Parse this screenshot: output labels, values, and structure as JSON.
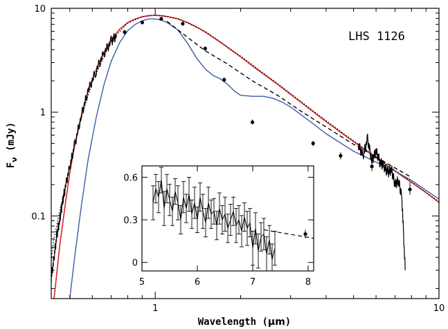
{
  "chart_data": [
    {
      "type": "line",
      "panel": "main",
      "xlabel_main": "Wavelength (",
      "xlabel_unit": "μm",
      "xlabel_close": ")",
      "ylabel_main": "F",
      "ylabel_sub": "ν",
      "ylabel_unit": " (mJy)",
      "annotation": "LHS 1126",
      "xscale": "log",
      "yscale": "log",
      "xlim": [
        0.43,
        10
      ],
      "ylim": [
        0.016,
        10
      ],
      "xticks": [
        {
          "v": 1,
          "label": "1"
        },
        {
          "v": 10,
          "label": "10"
        }
      ],
      "yticks": [
        {
          "v": 0.1,
          "label": "0.1"
        },
        {
          "v": 1,
          "label": "1"
        },
        {
          "v": 10,
          "label": "10"
        }
      ],
      "colors": {
        "red": "#dd2222",
        "blue": "#3e5aa8",
        "black": "#000000"
      },
      "series": [
        {
          "key": "red_model",
          "color": "#dd2222",
          "style": "solid",
          "x": [
            0.44,
            0.46,
            0.48,
            0.5,
            0.52,
            0.55,
            0.58,
            0.62,
            0.66,
            0.7,
            0.75,
            0.8,
            0.85,
            0.9,
            0.95,
            1.0,
            1.05,
            1.1,
            1.2,
            1.3,
            1.4,
            1.5,
            1.7,
            2.0,
            2.3,
            2.7,
            3.0,
            3.5,
            4.0,
            4.5,
            5.0,
            6.0,
            7.0,
            8.0,
            9.0,
            10.0
          ],
          "y": [
            0.016,
            0.05,
            0.12,
            0.26,
            0.48,
            0.95,
            1.6,
            2.6,
            3.8,
            5.0,
            6.3,
            7.3,
            7.9,
            8.3,
            8.5,
            8.55,
            8.5,
            8.35,
            7.9,
            7.3,
            6.6,
            5.9,
            4.7,
            3.4,
            2.55,
            1.85,
            1.48,
            1.07,
            0.81,
            0.64,
            0.52,
            0.365,
            0.27,
            0.21,
            0.168,
            0.135
          ]
        },
        {
          "key": "dotted_model",
          "color": "#000000",
          "style": "dotted",
          "x": [
            0.43,
            0.44,
            0.46,
            0.48,
            0.5,
            0.55,
            0.6,
            0.7,
            0.8,
            0.9,
            1.0,
            1.2,
            1.5,
            2.0,
            2.7,
            3.5,
            4.5,
            6.0,
            8.0,
            10.0
          ],
          "y": [
            0.038,
            0.06,
            0.11,
            0.18,
            0.3,
            0.9,
            1.95,
            4.9,
            7.2,
            8.3,
            8.6,
            8.0,
            6.0,
            3.45,
            1.88,
            1.09,
            0.65,
            0.37,
            0.213,
            0.137
          ]
        },
        {
          "key": "blue_model",
          "color": "#3e5aa8",
          "style": "solid",
          "x": [
            0.5,
            0.52,
            0.55,
            0.58,
            0.62,
            0.66,
            0.7,
            0.75,
            0.8,
            0.85,
            0.9,
            0.95,
            1.0,
            1.05,
            1.1,
            1.2,
            1.3,
            1.4,
            1.5,
            1.6,
            1.7,
            1.8,
            1.9,
            2.0,
            2.2,
            2.4,
            2.6,
            2.8,
            3.0,
            3.5,
            4.0,
            5.0,
            6.0,
            7.0,
            8.0,
            10.0
          ],
          "y": [
            0.016,
            0.04,
            0.13,
            0.35,
            0.9,
            1.85,
            3.1,
            4.7,
            6.1,
            7.0,
            7.6,
            7.9,
            7.9,
            7.7,
            7.3,
            6.2,
            4.6,
            3.3,
            2.6,
            2.25,
            2.08,
            1.85,
            1.6,
            1.45,
            1.42,
            1.42,
            1.36,
            1.25,
            1.12,
            0.82,
            0.62,
            0.42,
            0.33,
            0.27,
            0.22,
            0.145
          ]
        },
        {
          "key": "dashed_fit",
          "color": "#000000",
          "style": "dashed",
          "x": [
            1.1,
            1.25,
            1.5,
            1.8,
            2.2,
            2.7,
            3.3,
            4.0,
            5.0,
            6.0,
            7.0,
            8.0
          ],
          "y": [
            7.5,
            5.7,
            3.9,
            2.9,
            2.0,
            1.45,
            1.0,
            0.72,
            0.49,
            0.37,
            0.29,
            0.235
          ]
        },
        {
          "key": "spectrum",
          "color": "#000000",
          "style": "jagged",
          "x": [
            0.43,
            0.44,
            0.45,
            0.46,
            0.47,
            0.48,
            0.5,
            0.52,
            0.55,
            0.58,
            0.62,
            0.66,
            0.7,
            0.73
          ],
          "y": [
            0.025,
            0.04,
            0.065,
            0.09,
            0.13,
            0.18,
            0.3,
            0.48,
            0.95,
            1.6,
            2.55,
            3.7,
            4.8,
            5.5
          ]
        },
        {
          "key": "irs_spectrum",
          "color": "#000000",
          "style": "jagged",
          "x": [
            5.2,
            5.4,
            5.6,
            5.8,
            6.0,
            6.2,
            6.4,
            6.6,
            6.8,
            7.0,
            7.2,
            7.4,
            7.6
          ],
          "y": [
            0.48,
            0.38,
            0.55,
            0.34,
            0.42,
            0.33,
            0.3,
            0.26,
            0.28,
            0.2,
            0.22,
            0.15,
            0.03
          ]
        }
      ],
      "points": {
        "x": [
          0.78,
          0.9,
          1.05,
          1.25,
          1.5,
          1.75,
          2.2,
          3.6,
          4.5,
          5.8,
          7.9
        ],
        "y": [
          5.9,
          7.3,
          7.9,
          7.1,
          4.1,
          2.05,
          0.8,
          0.5,
          0.38,
          0.3,
          0.18
        ],
        "err_hi": [
          6.2,
          7.6,
          8.3,
          7.5,
          4.3,
          2.15,
          0.85,
          0.53,
          0.41,
          0.34,
          0.21
        ],
        "err_lo": [
          5.6,
          7.0,
          7.6,
          6.8,
          3.9,
          1.95,
          0.76,
          0.47,
          0.35,
          0.27,
          0.16
        ]
      }
    },
    {
      "type": "line",
      "panel": "inset",
      "xscale": "linear",
      "yscale": "linear",
      "xlim": [
        5,
        8.1
      ],
      "ylim": [
        -0.06,
        0.68
      ],
      "xticks": [
        {
          "v": 5,
          "label": "5"
        },
        {
          "v": 6,
          "label": "6"
        },
        {
          "v": 7,
          "label": "7"
        },
        {
          "v": 8,
          "label": "8"
        }
      ],
      "yticks": [
        {
          "v": 0,
          "label": "0"
        },
        {
          "v": 0.3,
          "label": "0.3"
        },
        {
          "v": 0.6,
          "label": "0.6"
        }
      ],
      "dashed": {
        "x": [
          7.2,
          8.1
        ],
        "y": [
          0.23,
          0.17
        ]
      },
      "point": {
        "x": 7.95,
        "y": 0.2,
        "err": 0.03
      },
      "spectrum": {
        "x": [
          5.2,
          5.25,
          5.3,
          5.35,
          5.4,
          5.45,
          5.5,
          5.55,
          5.6,
          5.65,
          5.7,
          5.75,
          5.8,
          5.85,
          5.9,
          5.95,
          6.0,
          6.05,
          6.1,
          6.15,
          6.2,
          6.25,
          6.3,
          6.35,
          6.4,
          6.45,
          6.5,
          6.55,
          6.6,
          6.65,
          6.7,
          6.75,
          6.8,
          6.85,
          6.9,
          6.95,
          7.0,
          7.05,
          7.1,
          7.15,
          7.2,
          7.25,
          7.3,
          7.35,
          7.4
        ],
        "y": [
          0.42,
          0.52,
          0.46,
          0.58,
          0.38,
          0.52,
          0.44,
          0.36,
          0.5,
          0.42,
          0.3,
          0.46,
          0.38,
          0.48,
          0.34,
          0.42,
          0.3,
          0.46,
          0.36,
          0.28,
          0.42,
          0.34,
          0.36,
          0.26,
          0.38,
          0.3,
          0.34,
          0.24,
          0.3,
          0.36,
          0.26,
          0.3,
          0.22,
          0.32,
          0.24,
          0.28,
          0.1,
          0.24,
          0.08,
          0.18,
          0.2,
          0.06,
          0.16,
          0.02,
          0.1
        ],
        "err": [
          0.12,
          0.1,
          0.11,
          0.09,
          0.12,
          0.1,
          0.11,
          0.1,
          0.09,
          0.12,
          0.1,
          0.11,
          0.1,
          0.12,
          0.1,
          0.11,
          0.09,
          0.1,
          0.12,
          0.1,
          0.11,
          0.1,
          0.09,
          0.1,
          0.11,
          0.1,
          0.12,
          0.1,
          0.11,
          0.1,
          0.12,
          0.1,
          0.11,
          0.1,
          0.12,
          0.1,
          0.12,
          0.11,
          0.12,
          0.1,
          0.11,
          0.12,
          0.1,
          0.11,
          0.12
        ]
      }
    }
  ]
}
